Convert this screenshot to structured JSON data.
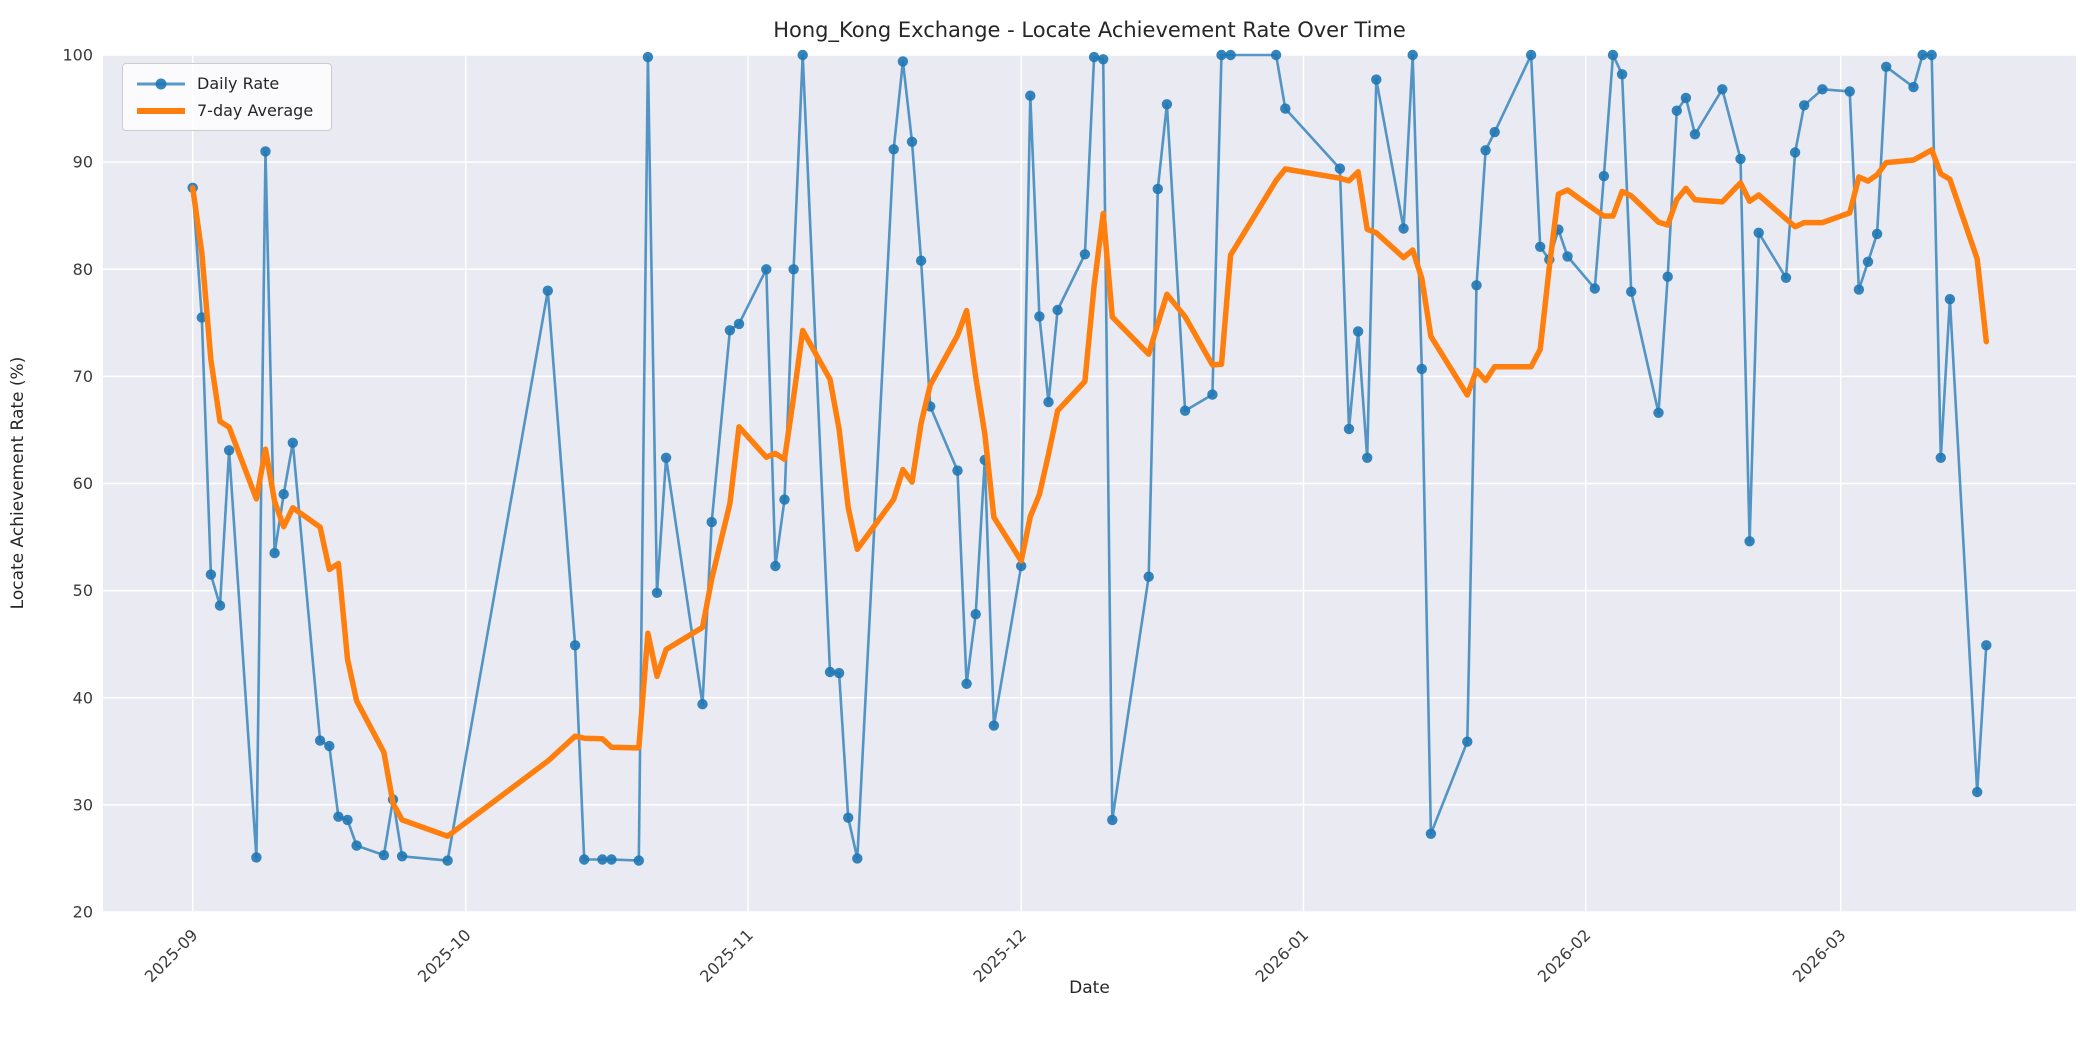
{
  "title": "Hong_Kong Exchange - Locate Achievement Rate Over Time",
  "axes": {
    "xlabel": "Date",
    "ylabel": "Locate Achievement Rate (%)",
    "yticks": [
      20,
      30,
      40,
      50,
      60,
      70,
      80,
      90,
      100
    ],
    "xticks": [
      {
        "label": "2025-09",
        "date": "2025-09-01"
      },
      {
        "label": "2025-10",
        "date": "2025-10-01"
      },
      {
        "label": "2025-11",
        "date": "2025-11-01"
      },
      {
        "label": "2025-12",
        "date": "2025-12-01"
      },
      {
        "label": "2026-01",
        "date": "2026-01-01"
      },
      {
        "label": "2026-02",
        "date": "2026-02-01"
      },
      {
        "label": "2026-03",
        "date": "2026-03-01"
      }
    ]
  },
  "legend": {
    "daily_label": "Daily Rate",
    "avg_label": "7-day Average"
  },
  "colors": {
    "daily_line": "rgba(31,119,180,0.75)",
    "daily_marker": "rgba(31,119,180,0.9)",
    "avg_line": "#ff7f0e",
    "axes_background": "#eaeaf2",
    "grid": "#ffffff",
    "text": "#262626",
    "tick_text": "#3a3a3a"
  },
  "chart_data": {
    "type": "line",
    "title": "Hong_Kong Exchange - Locate Achievement Rate Over Time",
    "xlabel": "Date",
    "ylabel": "Locate Achievement Rate (%)",
    "ylim": [
      20,
      100
    ],
    "grid": true,
    "legend_position": "upper left",
    "x_margin_fraction": 0.05,
    "series": [
      {
        "name": "Daily Rate",
        "style": "line+markers",
        "dates": [
          "2025-09-01",
          "2025-09-02",
          "2025-09-03",
          "2025-09-04",
          "2025-09-05",
          "2025-09-08",
          "2025-09-09",
          "2025-09-10",
          "2025-09-11",
          "2025-09-12",
          "2025-09-15",
          "2025-09-16",
          "2025-09-17",
          "2025-09-18",
          "2025-09-19",
          "2025-09-22",
          "2025-09-23",
          "2025-09-24",
          "2025-09-29",
          "2025-10-10",
          "2025-10-13",
          "2025-10-14",
          "2025-10-16",
          "2025-10-17",
          "2025-10-20",
          "2025-10-21",
          "2025-10-22",
          "2025-10-23",
          "2025-10-27",
          "2025-10-28",
          "2025-10-30",
          "2025-10-31",
          "2025-11-03",
          "2025-11-04",
          "2025-11-05",
          "2025-11-06",
          "2025-11-07",
          "2025-11-10",
          "2025-11-11",
          "2025-11-12",
          "2025-11-13",
          "2025-11-17",
          "2025-11-18",
          "2025-11-19",
          "2025-11-20",
          "2025-11-21",
          "2025-11-24",
          "2025-11-25",
          "2025-11-26",
          "2025-11-27",
          "2025-11-28",
          "2025-12-01",
          "2025-12-02",
          "2025-12-03",
          "2025-12-04",
          "2025-12-05",
          "2025-12-08",
          "2025-12-09",
          "2025-12-10",
          "2025-12-11",
          "2025-12-15",
          "2025-12-16",
          "2025-12-17",
          "2025-12-19",
          "2025-12-22",
          "2025-12-23",
          "2025-12-24",
          "2025-12-29",
          "2025-12-30",
          "2026-01-05",
          "2026-01-06",
          "2026-01-07",
          "2026-01-08",
          "2026-01-09",
          "2026-01-12",
          "2026-01-13",
          "2026-01-14",
          "2026-01-15",
          "2026-01-19",
          "2026-01-20",
          "2026-01-21",
          "2026-01-22",
          "2026-01-26",
          "2026-01-27",
          "2026-01-28",
          "2026-01-29",
          "2026-01-30",
          "2026-02-02",
          "2026-02-03",
          "2026-02-04",
          "2026-02-05",
          "2026-02-06",
          "2026-02-09",
          "2026-02-10",
          "2026-02-11",
          "2026-02-12",
          "2026-02-13",
          "2026-02-16",
          "2026-02-18",
          "2026-02-19",
          "2026-02-20",
          "2026-02-23",
          "2026-02-24",
          "2026-02-25",
          "2026-02-27",
          "2026-03-02",
          "2026-03-03",
          "2026-03-04",
          "2026-03-05",
          "2026-03-06",
          "2026-03-09",
          "2026-03-10",
          "2026-03-11",
          "2026-03-12",
          "2026-03-13",
          "2026-03-16",
          "2026-03-17"
        ],
        "values": [
          87.6,
          75.5,
          51.5,
          48.6,
          63.1,
          25.1,
          91.0,
          53.5,
          59.0,
          63.8,
          36.0,
          35.5,
          28.9,
          28.6,
          26.2,
          25.3,
          30.5,
          25.2,
          24.8,
          78.0,
          44.9,
          24.9,
          24.9,
          24.9,
          24.8,
          99.8,
          49.8,
          62.4,
          39.4,
          56.4,
          74.3,
          74.9,
          80.0,
          52.3,
          58.5,
          80.0,
          100.0,
          42.4,
          42.3,
          28.8,
          25.0,
          91.2,
          99.4,
          91.9,
          80.8,
          67.2,
          61.2,
          41.3,
          47.8,
          62.2,
          37.4,
          52.3,
          96.2,
          75.6,
          67.6,
          76.2,
          81.4,
          99.8,
          99.6,
          28.6,
          51.3,
          87.5,
          95.4,
          66.8,
          68.3,
          100.0,
          100.0,
          100.0,
          95.0,
          89.4,
          65.1,
          74.2,
          62.4,
          97.7,
          83.8,
          100.0,
          70.7,
          27.3,
          35.9,
          78.5,
          91.1,
          92.8,
          100.0,
          82.1,
          80.9,
          83.7,
          81.2,
          78.2,
          88.7,
          100.0,
          98.2,
          77.9,
          66.6,
          79.3,
          94.8,
          96.0,
          92.6,
          96.8,
          90.3,
          54.6,
          83.4,
          79.2,
          90.9,
          95.3,
          96.8,
          96.6,
          78.1,
          80.7,
          83.3,
          98.9,
          97.0,
          100.0,
          100.0,
          62.4,
          77.2,
          31.2,
          44.9
        ]
      },
      {
        "name": "7-day Average",
        "style": "line",
        "derived": "rolling_mean_window_7_min_periods_1_of_series_0"
      }
    ]
  }
}
